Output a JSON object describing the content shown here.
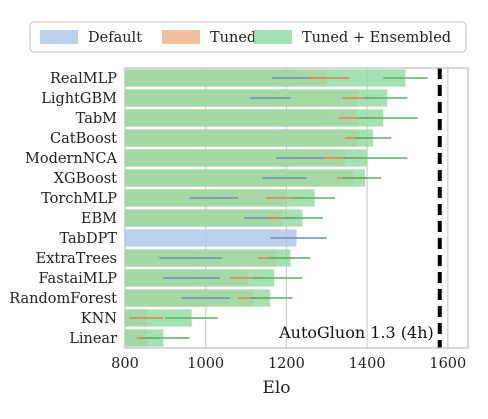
{
  "chart_data": {
    "type": "bar",
    "xlabel": "Elo",
    "xlim": [
      800,
      1650
    ],
    "xticks": [
      800,
      1000,
      1200,
      1400,
      1600
    ],
    "grid": true,
    "legend_placement": "top",
    "annotation": {
      "label": "AutoGluon 1.3 (4h)",
      "x": 1580
    },
    "categories": [
      "RealMLP",
      "LightGBM",
      "TabM",
      "CatBoost",
      "ModernNCA",
      "XGBoost",
      "TorchMLP",
      "EBM",
      "TabDPT",
      "ExtraTrees",
      "FastaiMLP",
      "RandomForest",
      "KNN",
      "Linear"
    ],
    "series": [
      {
        "name": "Default",
        "color": "#aec8e8",
        "errcolor": "#6c8ebf",
        "values": [
          1220,
          1160,
          1300,
          1370,
          1230,
          1195,
          1025,
          1165,
          1225,
          970,
          970,
          1005,
          null,
          855
        ],
        "err_low": [
          1165,
          1110,
          null,
          null,
          1175,
          1140,
          960,
          1095,
          1160,
          885,
          895,
          940,
          null,
          null
        ],
        "err_high": [
          1270,
          1210,
          null,
          null,
          1290,
          1250,
          1080,
          1230,
          1300,
          1040,
          1035,
          1060,
          null,
          null
        ]
      },
      {
        "name": "Tuned",
        "color": "#f2b48e",
        "errcolor": "#e07f56",
        "values": [
          1300,
          1375,
          1375,
          1380,
          1345,
          1365,
          1200,
          1190,
          null,
          1175,
          1105,
          1120,
          855,
          855
        ],
        "err_low": [
          1250,
          1340,
          1330,
          1345,
          1290,
          1325,
          1150,
          1155,
          null,
          1130,
          1060,
          1080,
          810,
          830
        ],
        "err_high": [
          1355,
          1410,
          1420,
          1410,
          1385,
          1400,
          1240,
          1225,
          null,
          1215,
          1145,
          1160,
          895,
          880
        ]
      },
      {
        "name": "Tuned + Ensembled",
        "color": "#96dca4",
        "errcolor": "#5caf63",
        "values": [
          1495,
          1450,
          1440,
          1415,
          1400,
          1395,
          1270,
          1240,
          null,
          1210,
          1170,
          1160,
          965,
          895
        ],
        "err_low": [
          1440,
          1395,
          1380,
          1370,
          1340,
          1340,
          1220,
          1190,
          null,
          1160,
          1120,
          1110,
          900,
          840
        ],
        "err_high": [
          1550,
          1500,
          1525,
          1460,
          1500,
          1435,
          1320,
          1290,
          null,
          1260,
          1240,
          1215,
          1030,
          960
        ]
      }
    ]
  }
}
